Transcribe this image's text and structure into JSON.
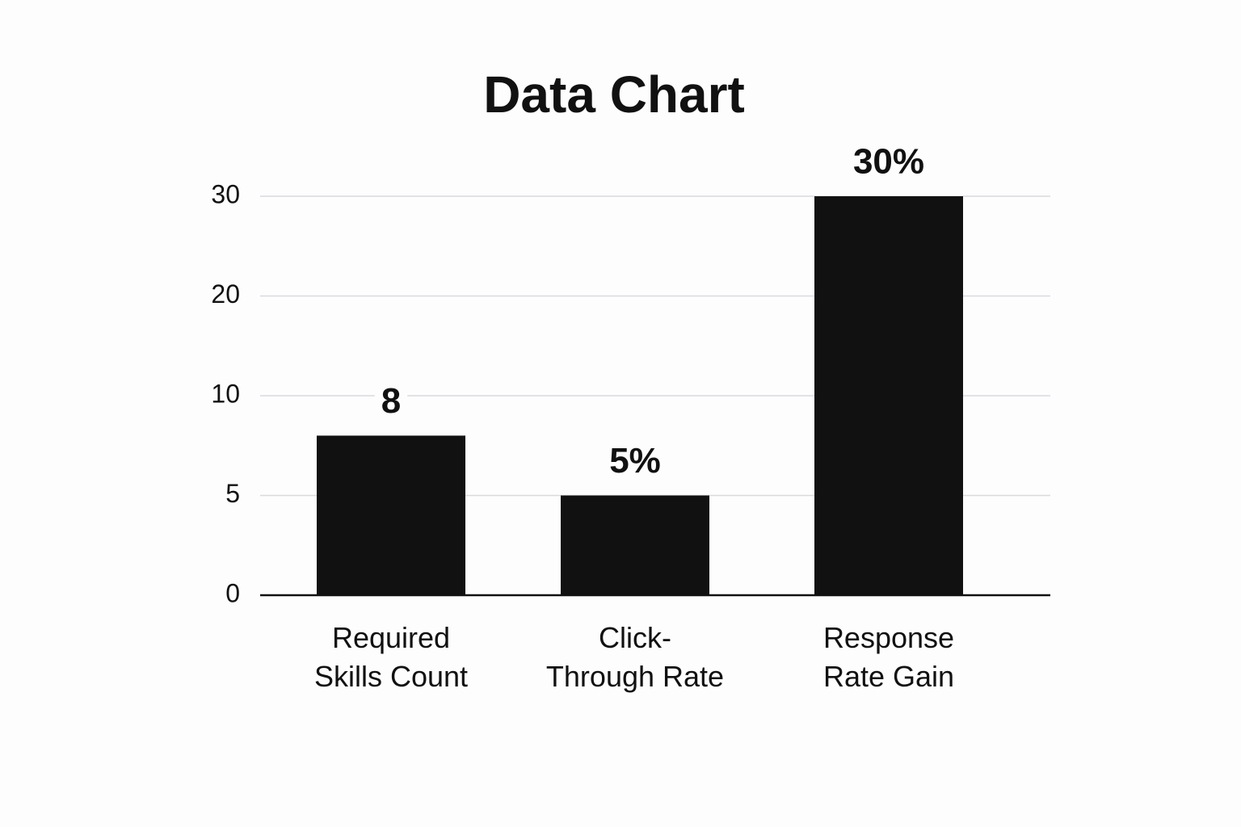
{
  "chart_data": {
    "type": "bar",
    "title": "Data Chart",
    "categories": [
      "Required\nSkills Count",
      "Click-\nThrough Rate",
      "Response\nRate Gain"
    ],
    "values": [
      8,
      5,
      30
    ],
    "value_labels": [
      "8",
      "5%",
      "30%"
    ],
    "color": "#111111",
    "ylim": [
      0,
      30
    ],
    "yticks": [
      0,
      5,
      10,
      20,
      30
    ],
    "yscale": "even-ticks",
    "grid": true
  }
}
